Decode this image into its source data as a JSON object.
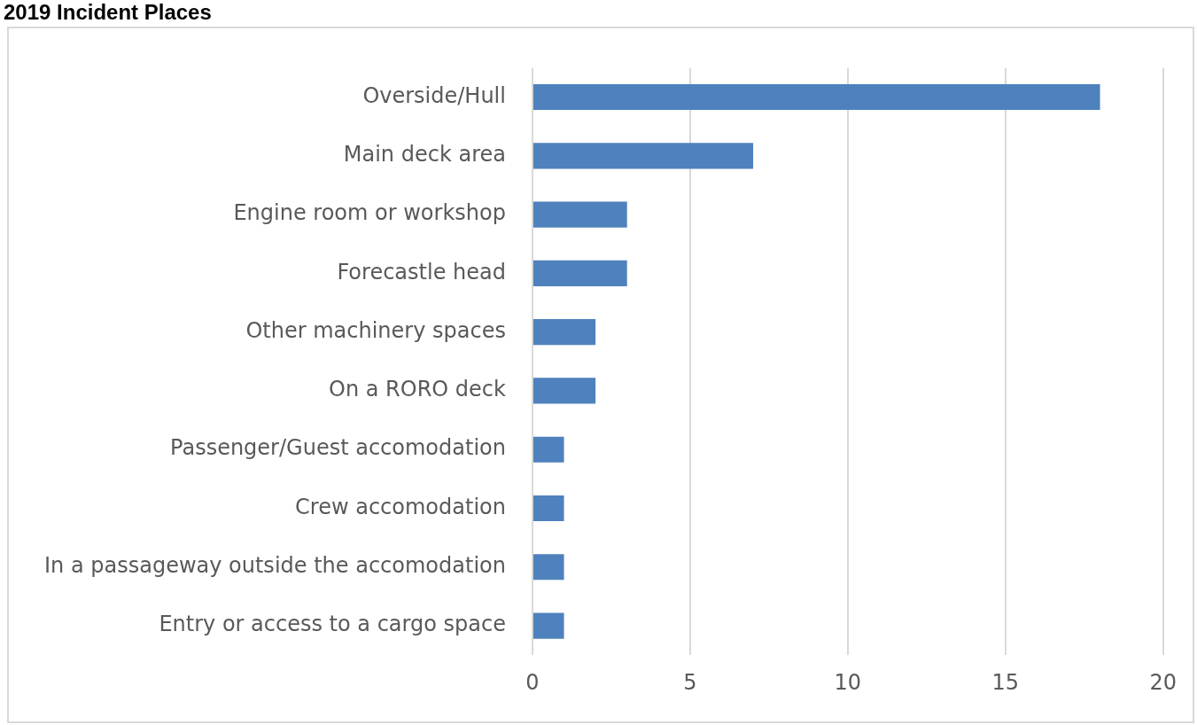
{
  "chart_data": {
    "type": "bar",
    "orientation": "horizontal",
    "title": "2019 Incident Places",
    "categories": [
      "Overside/Hull",
      "Main deck area",
      "Engine room or workshop",
      "Forecastle head",
      "Other machinery spaces",
      "On a RORO deck",
      "Passenger/Guest accomodation",
      "Crew accomodation",
      "In a passageway outside the accomodation",
      "Entry or access to a cargo space"
    ],
    "values": [
      18,
      7,
      3,
      3,
      2,
      2,
      1,
      1,
      1,
      1
    ],
    "color": "#4f81bd",
    "xlim": [
      0,
      20
    ],
    "xticks": [
      0,
      5,
      10,
      15,
      20
    ],
    "grid": "x",
    "legend": false
  }
}
